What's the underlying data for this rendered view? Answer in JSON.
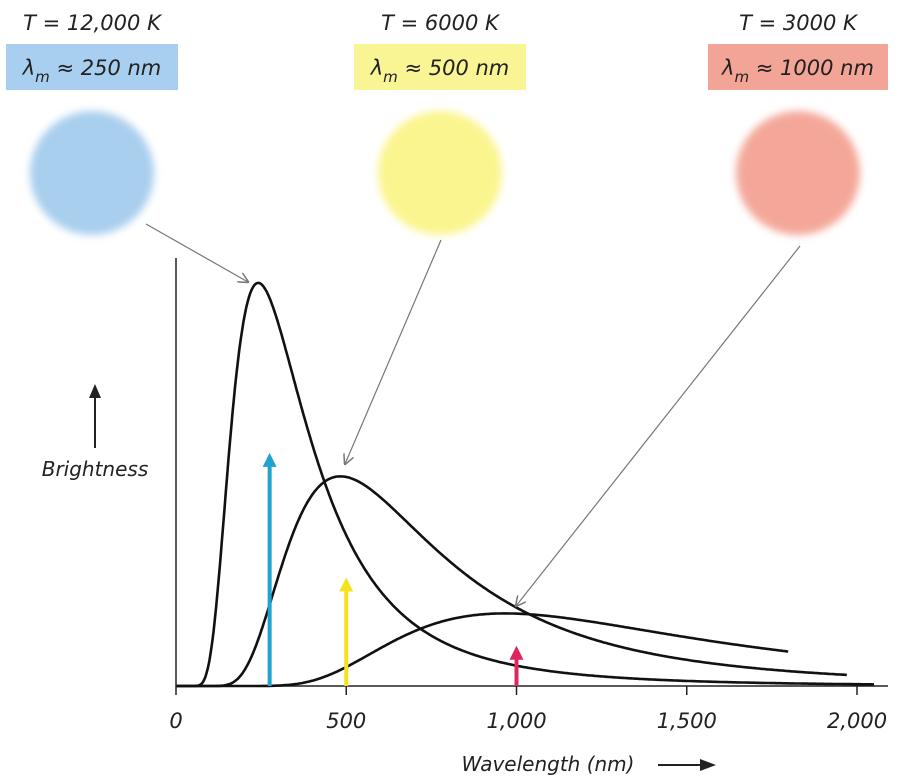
{
  "chart_data": {
    "type": "line",
    "xlabel": "Wavelength (nm)",
    "ylabel": "Brightness",
    "xlim": [
      0,
      2100
    ],
    "ylim": [
      0,
      1.0
    ],
    "x_ticks": [
      "0",
      "500",
      "1,000",
      "1,500",
      "2,000"
    ],
    "x_tick_values": [
      0,
      500,
      1000,
      1500,
      2000
    ],
    "y_ticks_shown": false,
    "legend": "none",
    "series": [
      {
        "temperature_label": "T = 12,000 K",
        "peak_label_symbol": "λ",
        "peak_label_sub": "m",
        "peak_label_value": "≈ 250 nm",
        "temperature_K": 12000,
        "peak_nm": 250,
        "peak_brightness": 1.0,
        "x_end_nm": 2050,
        "curve_color": "#111111",
        "box_color": "#a9cff0",
        "disk_color": "#a9cfee",
        "arrow_color": "#20a3cf",
        "arrow_x_nm": 275,
        "arrow_height": 0.58
      },
      {
        "temperature_label": "T = 6000 K",
        "peak_label_symbol": "λ",
        "peak_label_sub": "m",
        "peak_label_value": "≈ 500 nm",
        "temperature_K": 6000,
        "peak_nm": 500,
        "peak_brightness": 0.52,
        "x_end_nm": 1970,
        "curve_color": "#111111",
        "box_color": "#f9f594",
        "disk_color": "#fbf58f",
        "arrow_color": "#f4e21c",
        "arrow_x_nm": 500,
        "arrow_height": 0.27
      },
      {
        "temperature_label": "T = 3000 K",
        "peak_label_symbol": "λ",
        "peak_label_sub": "m",
        "peak_label_value": "≈ 1000 nm",
        "temperature_K": 3000,
        "peak_nm": 1000,
        "peak_brightness": 0.18,
        "x_end_nm": 1800,
        "curve_color": "#111111",
        "box_color": "#f2a496",
        "disk_color": "#f4a799",
        "arrow_color": "#e0245e",
        "arrow_x_nm": 1000,
        "arrow_height": 0.1
      }
    ],
    "axis_arrow_glyph": "⟶"
  }
}
